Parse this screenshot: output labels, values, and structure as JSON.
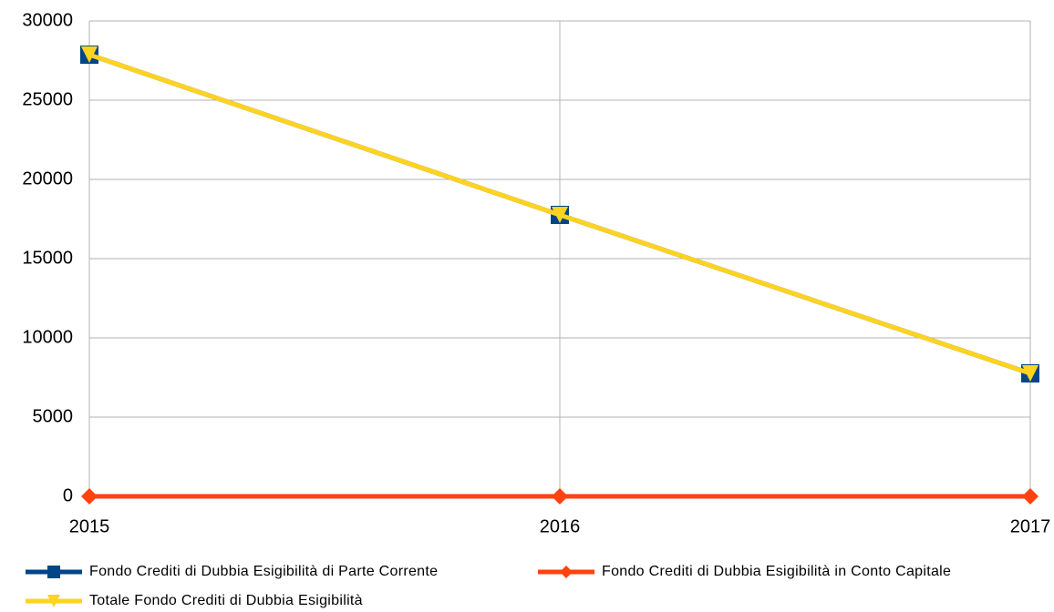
{
  "chart_data": {
    "type": "line",
    "categories": [
      "2015",
      "2016",
      "2017"
    ],
    "series": [
      {
        "name": "Fondo Crediti di Dubbia Esigibilità di Parte Corrente",
        "color": "#004586",
        "marker": "square",
        "values": [
          27870,
          17760,
          7760
        ]
      },
      {
        "name": "Fondo Crediti di Dubbia Esigibilità in Conto Capitale",
        "color": "#ff420e",
        "marker": "diamond",
        "values": [
          0,
          0,
          0
        ]
      },
      {
        "name": "Totale Fondo Crediti di Dubbia Esigibilità",
        "color": "#ffd320",
        "marker": "triangle-down",
        "values": [
          27870,
          17760,
          7760
        ]
      }
    ],
    "ylim": [
      0,
      30000
    ],
    "yticks": [
      0,
      5000,
      10000,
      15000,
      20000,
      25000,
      30000
    ],
    "grid": true,
    "legend": "bottom"
  }
}
